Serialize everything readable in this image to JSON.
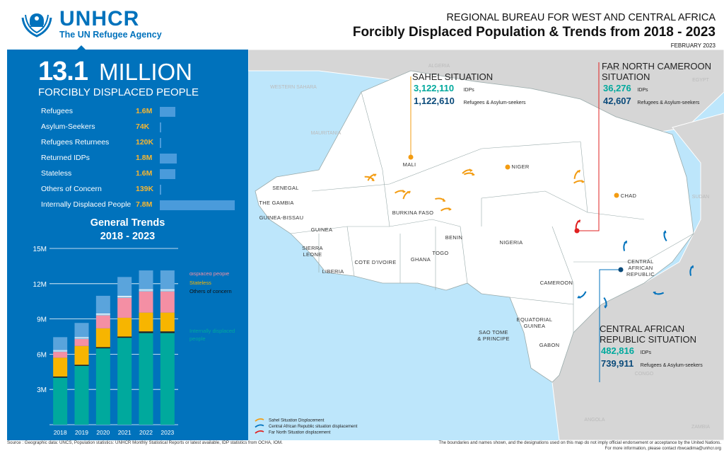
{
  "header": {
    "logo_name": "UNHCR",
    "logo_tagline": "The UN Refugee Agency",
    "supertitle": "REGIONAL BUREAU FOR WEST AND CENTRAL AFRICA",
    "title": "Forcibly Displaced Population & Trends from 2018 - 2023",
    "date": "FEBRUARY 2023"
  },
  "summary": {
    "total_number": "13.1",
    "total_unit": "MILLION",
    "subtitle": "FORCIBLY DISPLACED PEOPLE",
    "rows": [
      {
        "label": "Refugees",
        "value": "1.6M",
        "amount": 1.6
      },
      {
        "label": "Asylum-Seekers",
        "value": "74K",
        "amount": 0.074
      },
      {
        "label": "Refugees Returnees",
        "value": "120K",
        "amount": 0.12
      },
      {
        "label": "Returned IDPs",
        "value": "1.8M",
        "amount": 1.8
      },
      {
        "label": "Stateless",
        "value": "1.6M",
        "amount": 1.6
      },
      {
        "label": "Others of Concern",
        "value": "139K",
        "amount": 0.139
      },
      {
        "label": "Internally Displaced People",
        "value": "7.8M",
        "amount": 7.8
      }
    ]
  },
  "trends": {
    "title_line1": "General Trends",
    "title_line2": "2018 - 2023"
  },
  "chart_data": {
    "type": "bar",
    "stacked": true,
    "categories": [
      "2018",
      "2019",
      "2020",
      "2021",
      "2022",
      "2023"
    ],
    "ytick_labels": [
      "3M",
      "6M",
      "9M",
      "12M",
      "15M"
    ],
    "ylim": [
      0,
      15
    ],
    "ticks": [
      3,
      6,
      9,
      12,
      15
    ],
    "series": [
      {
        "name": "Internally displaced people",
        "color": "#00a99d",
        "values": [
          4.0,
          5.0,
          6.5,
          7.4,
          7.8,
          7.8
        ]
      },
      {
        "name": "Others of concern",
        "color": "#222222",
        "values": [
          0.1,
          0.1,
          0.1,
          0.1,
          0.14,
          0.14
        ]
      },
      {
        "name": "Stateless",
        "color": "#f7b500",
        "values": [
          1.6,
          1.6,
          1.6,
          1.6,
          1.6,
          1.6
        ]
      },
      {
        "name": "Returned Internally displaced people",
        "color": "#f48fa4",
        "values": [
          0.5,
          0.6,
          1.1,
          1.7,
          1.8,
          1.8
        ]
      },
      {
        "name": "Refugees Returnees",
        "color": "#a9d6ee",
        "values": [
          0.1,
          0.1,
          0.1,
          0.1,
          0.12,
          0.12
        ]
      },
      {
        "name": "Asylum-seekers",
        "color": "#ffffff",
        "values": [
          0.05,
          0.06,
          0.07,
          0.07,
          0.07,
          0.07
        ]
      },
      {
        "name": "Refugees",
        "color": "#5aa4dc",
        "values": [
          1.1,
          1.2,
          1.5,
          1.6,
          1.6,
          1.6
        ]
      }
    ]
  },
  "map": {
    "countries": [
      "MALI",
      "NIGER",
      "CHAD",
      "SENEGAL",
      "THE GAMBIA",
      "GUINEA-BISSAU",
      "GUINEA",
      "SIERRA LEONE",
      "LIBERIA",
      "COTE D'IVOIRE",
      "GHANA",
      "TOGO",
      "BENIN",
      "BURKINA FASO",
      "NIGERIA",
      "CAMEROON",
      "CENTRAL AFRICAN REPUBLIC",
      "EQUATORIAL GUINEA",
      "GABON",
      "SAO TOME & PRINCIPE"
    ],
    "background_countries": [
      "ALGERIA",
      "WESTERN SAHARA",
      "MAURITANIA",
      "LIBYA",
      "EGYPT",
      "SUDAN",
      "CONGO",
      "ANGOLA",
      "ZAMBIA"
    ],
    "sahel": {
      "title": "SAHEL SITUATION",
      "idps": "3,122,110",
      "idp_label": "IDPs",
      "refugees": "1,122,610",
      "ref_label": "Refugees & Asylum-seekers"
    },
    "far_north": {
      "title": "FAR NORTH CAMEROON SITUATION",
      "idps": "36,276",
      "idp_label": "IDPs",
      "refugees": "42,607",
      "ref_label": "Refugees & Asylum-seekers"
    },
    "car": {
      "title": "CENTRAL AFRICAN REPUBLIC SITUATION",
      "idps": "482,816",
      "idp_label": "IDPs",
      "refugees": "739,911",
      "ref_label": "Refugees & Asylum-seekers"
    },
    "legend": [
      {
        "label": "Sahel Situation Displacement",
        "color": "#f39c12"
      },
      {
        "label": "Central African Republic situation displacement",
        "color": "#0072bc"
      },
      {
        "label": "Far North Situation displacement",
        "color": "#e02020"
      }
    ]
  },
  "footer": {
    "source": "Source : Geographic data: UNCS, Population statistics: UNHCR Monthly Statistical Reports or latest available, IDP statistics from OCHA, IOM.",
    "disclaimer1": "The boundaries and names shown, and the designations used on this map do not imply official endorsement or acceptance by the United Nations.",
    "disclaimer2": "For more information, please contact rbwcadima@unhcr.org"
  },
  "colors": {
    "primary": "#0072bc",
    "accent": "#f7b731",
    "idp_teal": "#00a99d",
    "sahel_orange": "#f39c12",
    "far_north_red": "#e02020"
  }
}
